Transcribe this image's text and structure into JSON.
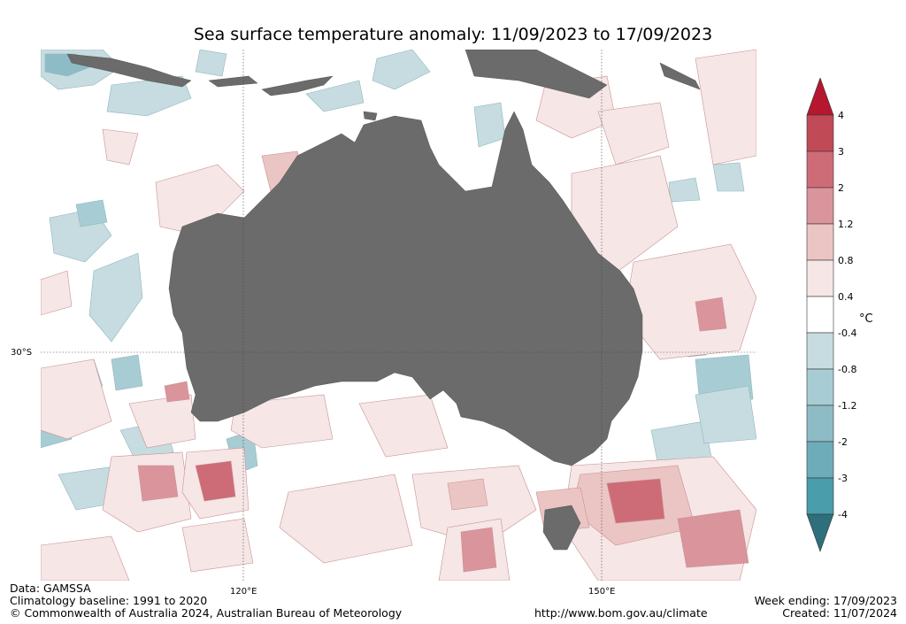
{
  "title": "Sea surface temperature anomaly: 11/09/2023 to 17/09/2023",
  "axes": {
    "lon_ticks": [
      "120°E",
      "150°E"
    ],
    "lat_ticks": [
      "30°S"
    ]
  },
  "colorbar": {
    "unit": "°C",
    "levels": [
      "4",
      "3",
      "2",
      "1.2",
      "0.8",
      "0.4",
      "-0.4",
      "-0.8",
      "-1.2",
      "-2",
      "-3",
      "-4"
    ],
    "colors": [
      "#b5172f",
      "#c14a57",
      "#cd6c77",
      "#da949c",
      "#ebc5c3",
      "#f6e6e6",
      "#ffffff",
      "#c6dce0",
      "#a8ccd3",
      "#8dbcc6",
      "#6eacba",
      "#4a9dab",
      "#2d6f7c"
    ]
  },
  "footer": {
    "data_source": "Data: GAMSSA",
    "baseline": "Climatology baseline: 1991 to 2020",
    "copyright": "© Commonwealth of Australia 2024, Australian Bureau of Meteorology",
    "url": "http://www.bom.gov.au/climate",
    "week_ending": "Week ending: 17/09/2023",
    "created": "Created: 11/07/2024"
  },
  "map_colors": {
    "land": "#6b6b6b",
    "ocean": "#ffffff"
  }
}
